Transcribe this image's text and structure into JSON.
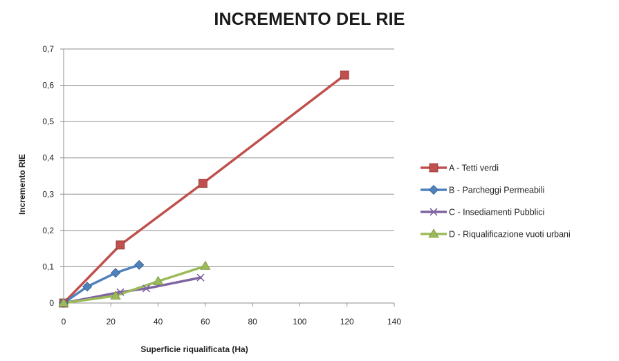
{
  "chart_data": {
    "type": "line",
    "title": "INCREMENTO DEL RIE",
    "xlabel": "Superficie riqualificata  (Ha)",
    "ylabel": "Incremento RIE",
    "xlim": [
      0,
      140
    ],
    "ylim": [
      0,
      0.7
    ],
    "xticks": [
      0,
      20,
      40,
      60,
      80,
      100,
      120,
      140
    ],
    "xtick_labels": [
      "0",
      "20",
      "40",
      "60",
      "80",
      "100",
      "120",
      "140"
    ],
    "yticks": [
      0,
      0.1,
      0.2,
      0.3,
      0.4,
      0.5,
      0.6,
      0.7
    ],
    "ytick_labels": [
      "0",
      "0,1",
      "0,2",
      "0,3",
      "0,4",
      "0,5",
      "0,6",
      "0,7"
    ],
    "grid": "horizontal",
    "legend_position": "right",
    "series": [
      {
        "name": "A - Tetti verdi",
        "color": "#c0504d",
        "marker": "square",
        "points": [
          [
            0,
            0
          ],
          [
            24,
            0.16
          ],
          [
            59,
            0.33
          ],
          [
            119,
            0.628
          ]
        ]
      },
      {
        "name": "B - Parcheggi  Permeabili",
        "color": "#4f81bd",
        "marker": "diamond",
        "points": [
          [
            0,
            0
          ],
          [
            10,
            0.045
          ],
          [
            22,
            0.083
          ],
          [
            32,
            0.105
          ]
        ]
      },
      {
        "name": "C - Insediamenti  Pubblici",
        "color": "#8064a2",
        "marker": "x",
        "points": [
          [
            0,
            0
          ],
          [
            24,
            0.03
          ],
          [
            35,
            0.04
          ],
          [
            58,
            0.07
          ]
        ]
      },
      {
        "name": "D - Riqualificazione  vuoti urbani",
        "color": "#9bbb59",
        "marker": "triangle",
        "points": [
          [
            0,
            0
          ],
          [
            22,
            0.02
          ],
          [
            40,
            0.06
          ],
          [
            60,
            0.102
          ]
        ]
      }
    ]
  }
}
